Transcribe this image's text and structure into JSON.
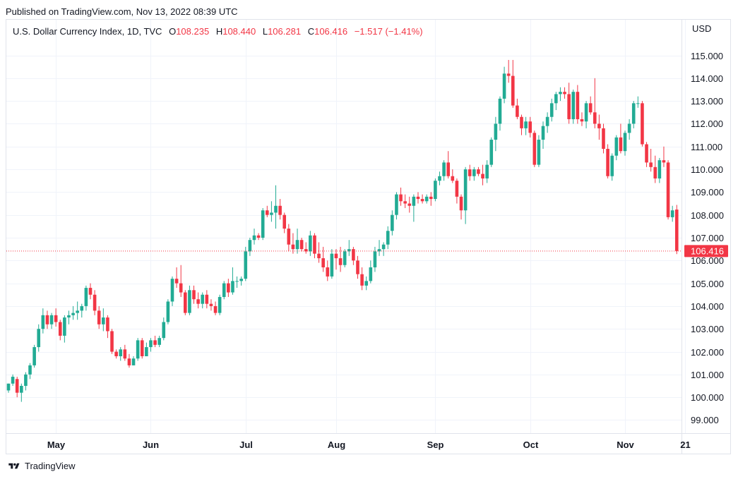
{
  "published": "Published on TradingView.com, Nov 13, 2022 08:39 UTC",
  "legend": {
    "symbol": "U.S. Dollar Currency Index, 1D, TVC",
    "o_label": "O",
    "o_value": "108.235",
    "h_label": "H",
    "h_value": "108.440",
    "l_label": "L",
    "l_value": "106.281",
    "c_label": "C",
    "c_value": "106.416",
    "change": "−1.517 (−1.41%)"
  },
  "currency": "USD",
  "last_price_label": "106.416",
  "brand": "TradingView",
  "colors": {
    "up": "#22ab94",
    "down": "#f23645",
    "grid": "#f0f3fa",
    "text": "#131722"
  },
  "chart_data": {
    "type": "candlestick",
    "title": "U.S. Dollar Currency Index, 1D, TVC",
    "ylim": [
      98.5,
      115.8
    ],
    "y_ticks": [
      99,
      100,
      101,
      102,
      103,
      104,
      105,
      106,
      107,
      108,
      109,
      110,
      111,
      112,
      113,
      114,
      115
    ],
    "y_tick_labels": [
      "99.000",
      "100.000",
      "101.000",
      "102.000",
      "103.000",
      "104.000",
      "105.000",
      "106.000",
      "107.000",
      "108.000",
      "109.000",
      "110.000",
      "111.000",
      "112.000",
      "113.000",
      "114.000",
      "115.000"
    ],
    "x_ticks": [
      {
        "label": "May",
        "bar": 11
      },
      {
        "label": "Jun",
        "bar": 33
      },
      {
        "label": "Jul",
        "bar": 55
      },
      {
        "label": "Aug",
        "bar": 76
      },
      {
        "label": "Sep",
        "bar": 99
      },
      {
        "label": "Oct",
        "bar": 121
      },
      {
        "label": "Nov",
        "bar": 143
      },
      {
        "label": "21",
        "bar": 157
      }
    ],
    "last_close": 106.416,
    "candles": [
      [
        100.3,
        100.6,
        100.2,
        100.6
      ],
      [
        100.6,
        101.0,
        100.5,
        100.9
      ],
      [
        100.8,
        100.9,
        100.0,
        100.2
      ],
      [
        100.2,
        100.6,
        99.8,
        100.5
      ],
      [
        100.5,
        101.1,
        100.3,
        101.0
      ],
      [
        101.0,
        101.5,
        100.8,
        101.4
      ],
      [
        101.4,
        102.3,
        101.3,
        102.2
      ],
      [
        102.2,
        103.2,
        102.0,
        103.0
      ],
      [
        103.0,
        103.9,
        102.8,
        103.6
      ],
      [
        103.6,
        103.8,
        103.0,
        103.2
      ],
      [
        103.2,
        103.7,
        103.0,
        103.6
      ],
      [
        103.6,
        103.9,
        103.1,
        103.3
      ],
      [
        103.3,
        103.4,
        102.5,
        102.7
      ],
      [
        102.7,
        103.6,
        102.4,
        103.5
      ],
      [
        103.5,
        103.8,
        103.2,
        103.6
      ],
      [
        103.6,
        104.0,
        103.4,
        103.7
      ],
      [
        103.7,
        104.2,
        103.4,
        103.8
      ],
      [
        103.8,
        104.1,
        103.5,
        104.0
      ],
      [
        104.0,
        104.9,
        103.8,
        104.8
      ],
      [
        104.8,
        105.0,
        104.3,
        104.5
      ],
      [
        104.5,
        104.7,
        103.6,
        103.8
      ],
      [
        103.8,
        104.0,
        103.0,
        103.2
      ],
      [
        103.2,
        103.9,
        102.9,
        103.5
      ],
      [
        103.5,
        103.6,
        102.6,
        102.9
      ],
      [
        102.9,
        103.0,
        101.9,
        102.0
      ],
      [
        102.0,
        102.1,
        101.7,
        101.8
      ],
      [
        101.8,
        102.2,
        101.6,
        102.1
      ],
      [
        102.1,
        102.3,
        101.6,
        101.7
      ],
      [
        101.7,
        101.9,
        101.3,
        101.4
      ],
      [
        101.4,
        101.8,
        101.4,
        101.7
      ],
      [
        101.7,
        102.6,
        101.6,
        102.5
      ],
      [
        102.5,
        102.6,
        101.7,
        101.8
      ],
      [
        101.8,
        102.4,
        101.8,
        102.2
      ],
      [
        102.2,
        102.6,
        102.0,
        102.5
      ],
      [
        102.5,
        102.7,
        102.2,
        102.3
      ],
      [
        102.3,
        102.7,
        102.2,
        102.6
      ],
      [
        102.6,
        103.5,
        102.5,
        103.3
      ],
      [
        103.3,
        104.3,
        103.2,
        104.2
      ],
      [
        104.2,
        105.3,
        104.0,
        105.2
      ],
      [
        105.2,
        105.7,
        104.8,
        105.0
      ],
      [
        105.0,
        105.8,
        104.4,
        104.6
      ],
      [
        104.6,
        104.7,
        103.6,
        103.7
      ],
      [
        103.7,
        104.9,
        103.6,
        104.7
      ],
      [
        104.7,
        104.9,
        104.1,
        104.3
      ],
      [
        104.3,
        104.6,
        103.9,
        104.1
      ],
      [
        104.1,
        104.6,
        103.9,
        104.5
      ],
      [
        104.5,
        104.7,
        103.9,
        104.1
      ],
      [
        104.1,
        104.3,
        103.8,
        104.0
      ],
      [
        104.0,
        104.2,
        103.6,
        103.7
      ],
      [
        103.7,
        104.5,
        103.6,
        104.4
      ],
      [
        104.4,
        105.1,
        104.3,
        105.0
      ],
      [
        105.0,
        105.2,
        104.4,
        104.6
      ],
      [
        104.6,
        105.7,
        104.5,
        105.1
      ],
      [
        105.1,
        105.3,
        104.8,
        105.1
      ],
      [
        105.1,
        105.3,
        104.9,
        105.2
      ],
      [
        105.2,
        106.6,
        105.1,
        106.4
      ],
      [
        106.4,
        107.0,
        106.2,
        106.9
      ],
      [
        106.9,
        107.4,
        106.7,
        107.1
      ],
      [
        107.1,
        107.2,
        106.9,
        107.0
      ],
      [
        107.0,
        108.3,
        106.9,
        108.2
      ],
      [
        108.2,
        108.4,
        107.9,
        108.0
      ],
      [
        108.0,
        108.6,
        107.7,
        108.1
      ],
      [
        108.1,
        109.3,
        107.4,
        108.4
      ],
      [
        108.4,
        108.7,
        107.8,
        108.0
      ],
      [
        108.0,
        108.1,
        107.2,
        107.4
      ],
      [
        107.4,
        107.6,
        106.4,
        106.7
      ],
      [
        106.7,
        107.2,
        106.3,
        106.5
      ],
      [
        106.5,
        107.4,
        106.3,
        106.9
      ],
      [
        106.9,
        107.0,
        106.4,
        106.5
      ],
      [
        106.5,
        106.8,
        106.3,
        106.4
      ],
      [
        106.4,
        107.3,
        106.2,
        107.1
      ],
      [
        107.1,
        107.2,
        106.1,
        106.3
      ],
      [
        106.3,
        106.8,
        105.9,
        106.1
      ],
      [
        106.1,
        106.6,
        105.5,
        105.7
      ],
      [
        105.7,
        106.0,
        105.1,
        105.3
      ],
      [
        105.3,
        106.5,
        105.2,
        106.3
      ],
      [
        106.3,
        106.5,
        105.6,
        106.1
      ],
      [
        106.1,
        106.6,
        105.5,
        105.8
      ],
      [
        105.8,
        106.5,
        105.7,
        106.4
      ],
      [
        106.4,
        106.9,
        106.2,
        106.5
      ],
      [
        106.5,
        106.6,
        105.8,
        106.0
      ],
      [
        106.0,
        106.2,
        105.2,
        105.4
      ],
      [
        105.4,
        105.7,
        104.7,
        104.9
      ],
      [
        104.9,
        105.3,
        104.7,
        105.1
      ],
      [
        105.1,
        106.0,
        105.0,
        105.7
      ],
      [
        105.7,
        106.6,
        105.5,
        106.4
      ],
      [
        106.4,
        106.9,
        106.2,
        106.5
      ],
      [
        106.5,
        106.8,
        106.2,
        106.7
      ],
      [
        106.7,
        107.5,
        106.5,
        107.3
      ],
      [
        107.3,
        108.2,
        107.1,
        108.0
      ],
      [
        108.0,
        109.0,
        107.8,
        108.9
      ],
      [
        108.9,
        109.2,
        108.4,
        108.6
      ],
      [
        108.6,
        108.9,
        108.3,
        108.5
      ],
      [
        108.5,
        108.8,
        108.1,
        108.4
      ],
      [
        108.4,
        108.9,
        107.7,
        108.8
      ],
      [
        108.8,
        109.0,
        108.5,
        108.7
      ],
      [
        108.7,
        108.9,
        108.5,
        108.6
      ],
      [
        108.6,
        108.9,
        108.5,
        108.8
      ],
      [
        108.8,
        109.0,
        108.4,
        108.7
      ],
      [
        108.7,
        109.6,
        108.6,
        109.5
      ],
      [
        109.5,
        109.9,
        109.3,
        109.7
      ],
      [
        109.7,
        110.4,
        109.5,
        110.3
      ],
      [
        110.3,
        110.8,
        109.6,
        109.7
      ],
      [
        109.7,
        110.0,
        109.4,
        109.5
      ],
      [
        109.5,
        109.6,
        108.5,
        108.8
      ],
      [
        108.8,
        108.9,
        107.8,
        108.2
      ],
      [
        108.2,
        110.1,
        107.6,
        110.0
      ],
      [
        110.0,
        110.2,
        109.5,
        109.7
      ],
      [
        109.7,
        110.1,
        109.5,
        110.0
      ],
      [
        110.0,
        110.1,
        109.7,
        109.8
      ],
      [
        109.8,
        110.2,
        109.3,
        109.6
      ],
      [
        109.6,
        110.4,
        109.4,
        110.2
      ],
      [
        110.2,
        111.4,
        110.1,
        111.3
      ],
      [
        111.3,
        112.3,
        110.8,
        112.0
      ],
      [
        112.0,
        113.2,
        111.7,
        113.1
      ],
      [
        113.1,
        114.5,
        112.9,
        114.2
      ],
      [
        114.2,
        114.8,
        113.8,
        114.1
      ],
      [
        114.1,
        114.8,
        112.7,
        112.8
      ],
      [
        112.8,
        113.1,
        112.2,
        112.3
      ],
      [
        112.3,
        112.4,
        111.5,
        111.8
      ],
      [
        111.8,
        112.3,
        111.5,
        112.1
      ],
      [
        112.1,
        112.3,
        111.4,
        111.6
      ],
      [
        111.6,
        111.7,
        110.1,
        110.2
      ],
      [
        110.2,
        111.5,
        110.1,
        111.3
      ],
      [
        111.3,
        112.1,
        110.9,
        111.9
      ],
      [
        111.9,
        112.5,
        111.6,
        112.3
      ],
      [
        112.3,
        113.1,
        112.1,
        112.9
      ],
      [
        112.9,
        113.4,
        112.6,
        113.3
      ],
      [
        113.3,
        113.6,
        113.0,
        113.4
      ],
      [
        113.4,
        113.6,
        113.1,
        113.3
      ],
      [
        113.3,
        113.8,
        112.0,
        112.2
      ],
      [
        112.2,
        113.5,
        112.0,
        113.4
      ],
      [
        113.4,
        113.7,
        112.0,
        112.2
      ],
      [
        112.2,
        112.5,
        111.9,
        112.1
      ],
      [
        112.1,
        113.0,
        111.8,
        112.9
      ],
      [
        112.9,
        113.2,
        112.4,
        112.5
      ],
      [
        112.5,
        114.0,
        111.8,
        112.0
      ],
      [
        112.0,
        112.4,
        111.3,
        111.8
      ],
      [
        111.8,
        112.0,
        110.7,
        110.9
      ],
      [
        110.9,
        111.1,
        109.6,
        109.7
      ],
      [
        109.7,
        110.7,
        109.5,
        110.6
      ],
      [
        110.6,
        111.5,
        110.4,
        111.4
      ],
      [
        111.4,
        112.0,
        110.7,
        110.8
      ],
      [
        110.8,
        111.7,
        110.6,
        111.6
      ],
      [
        111.6,
        112.2,
        111.3,
        112.0
      ],
      [
        112.0,
        113.0,
        111.8,
        112.9
      ],
      [
        112.9,
        113.2,
        112.7,
        112.9
      ],
      [
        112.9,
        113.0,
        111.0,
        111.1
      ],
      [
        111.1,
        111.2,
        110.1,
        110.3
      ],
      [
        110.3,
        110.9,
        109.9,
        110.1
      ],
      [
        110.1,
        110.6,
        109.4,
        109.6
      ],
      [
        109.6,
        110.5,
        109.4,
        110.4
      ],
      [
        110.4,
        111.0,
        110.1,
        110.3
      ],
      [
        110.3,
        110.4,
        107.8,
        107.9
      ],
      [
        107.9,
        108.4,
        107.7,
        108.2
      ],
      [
        108.235,
        108.44,
        106.281,
        106.416
      ]
    ]
  }
}
